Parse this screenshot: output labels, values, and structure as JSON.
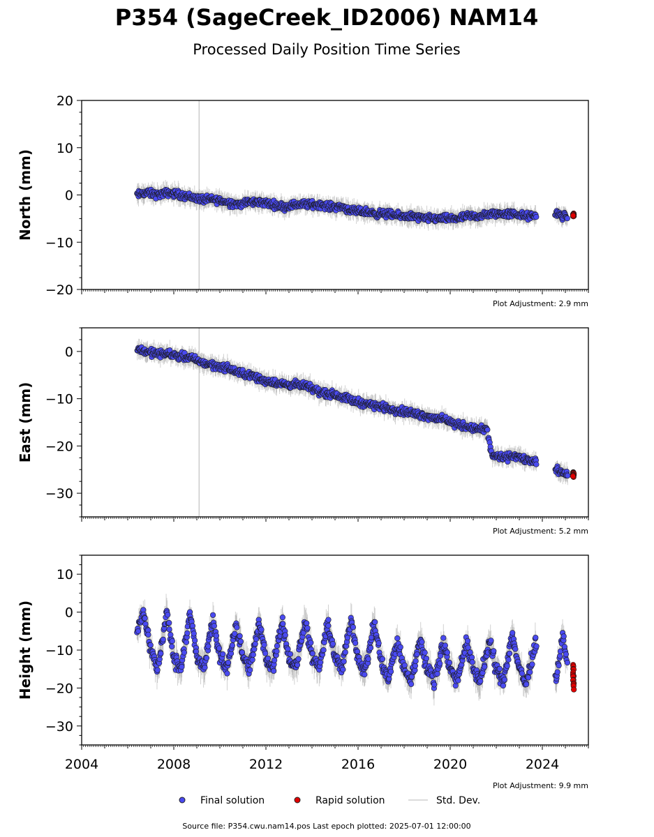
{
  "title": "P354 (SageCreek_ID2006) NAM14",
  "subtitle": "Processed Daily Position Time Series",
  "source_text": "Source file: P354.cwu.nam14.pos  Last epoch plotted: 2025-07-01 12:00:00",
  "legend": {
    "final": "Final solution",
    "rapid": "Rapid solution",
    "std": "Std. Dev."
  },
  "colors": {
    "final": "#4a4af0",
    "rapid": "#e00000",
    "std": "#888888",
    "vline": "#cccccc"
  },
  "chart_data": [
    {
      "type": "scatter",
      "id": "north",
      "ylabel": "North (mm)",
      "ylim": [
        -20,
        20
      ],
      "yticks": [
        -20,
        -10,
        0,
        10,
        20
      ],
      "xlim": [
        2004,
        2026
      ],
      "adjustment": "Plot Adjustment: 2.9 mm",
      "vertical_line_x": 2009.1,
      "series": [
        {
          "name": "Final solution",
          "points": [
            [
              2006.4,
              0
            ],
            [
              2006.8,
              0.5
            ],
            [
              2007.3,
              0
            ],
            [
              2007.8,
              0.5
            ],
            [
              2008.3,
              0
            ],
            [
              2008.8,
              -0.5
            ],
            [
              2009.3,
              -1
            ],
            [
              2009.8,
              -1
            ],
            [
              2010.3,
              -1.5
            ],
            [
              2010.8,
              -2
            ],
            [
              2011.3,
              -1.5
            ],
            [
              2011.8,
              -1.5
            ],
            [
              2012.3,
              -2
            ],
            [
              2012.8,
              -2.5
            ],
            [
              2013.3,
              -2
            ],
            [
              2013.8,
              -2
            ],
            [
              2014.3,
              -2
            ],
            [
              2014.8,
              -2.5
            ],
            [
              2015.3,
              -2.5
            ],
            [
              2015.8,
              -3.5
            ],
            [
              2016.3,
              -3.5
            ],
            [
              2016.8,
              -4
            ],
            [
              2017.3,
              -4
            ],
            [
              2017.8,
              -4.5
            ],
            [
              2018.3,
              -4.5
            ],
            [
              2018.8,
              -5
            ],
            [
              2019.3,
              -5
            ],
            [
              2019.8,
              -5
            ],
            [
              2020.3,
              -5
            ],
            [
              2020.8,
              -4.5
            ],
            [
              2021.3,
              -4.5
            ],
            [
              2021.8,
              -4
            ],
            [
              2022.3,
              -4
            ],
            [
              2022.8,
              -4
            ],
            [
              2023.3,
              -4.5
            ],
            [
              2023.7,
              -4.5
            ],
            [
              2024.6,
              -4
            ],
            [
              2024.9,
              -4.5
            ],
            [
              2025.1,
              -4.5
            ]
          ]
        },
        {
          "name": "Rapid solution",
          "points": [
            [
              2025.3,
              -4
            ],
            [
              2025.4,
              -4.5
            ]
          ]
        }
      ]
    },
    {
      "type": "scatter",
      "id": "east",
      "ylabel": "East (mm)",
      "ylim": [
        -35,
        5
      ],
      "yticks": [
        -30,
        -20,
        -10,
        0
      ],
      "xlim": [
        2004,
        2026
      ],
      "adjustment": "Plot Adjustment: 5.2 mm",
      "vertical_line_x": 2009.1,
      "series": [
        {
          "name": "Final solution",
          "points": [
            [
              2006.4,
              0.5
            ],
            [
              2006.8,
              0
            ],
            [
              2007.3,
              -0.5
            ],
            [
              2007.8,
              -0.5
            ],
            [
              2008.3,
              -1
            ],
            [
              2008.8,
              -1.5
            ],
            [
              2009.3,
              -2.5
            ],
            [
              2009.8,
              -3
            ],
            [
              2010.3,
              -3.5
            ],
            [
              2010.8,
              -4.5
            ],
            [
              2011.3,
              -5
            ],
            [
              2011.8,
              -6
            ],
            [
              2012.3,
              -6.5
            ],
            [
              2012.8,
              -7
            ],
            [
              2013.3,
              -7
            ],
            [
              2013.8,
              -7.5
            ],
            [
              2014.3,
              -8.5
            ],
            [
              2014.8,
              -9
            ],
            [
              2015.3,
              -9.5
            ],
            [
              2015.8,
              -10.5
            ],
            [
              2016.3,
              -11
            ],
            [
              2016.8,
              -11.5
            ],
            [
              2017.3,
              -12
            ],
            [
              2017.8,
              -12.5
            ],
            [
              2018.3,
              -13
            ],
            [
              2018.8,
              -13.5
            ],
            [
              2019.3,
              -14
            ],
            [
              2019.8,
              -14.5
            ],
            [
              2020.3,
              -15.5
            ],
            [
              2020.8,
              -16
            ],
            [
              2021.3,
              -16.5
            ],
            [
              2021.6,
              -16.5
            ],
            [
              2021.8,
              -22
            ],
            [
              2022.3,
              -22.5
            ],
            [
              2022.8,
              -22
            ],
            [
              2023.3,
              -23
            ],
            [
              2023.7,
              -23.5
            ],
            [
              2024.6,
              -25
            ],
            [
              2024.9,
              -25.5
            ],
            [
              2025.1,
              -26
            ]
          ]
        },
        {
          "name": "Rapid solution",
          "points": [
            [
              2025.3,
              -25.5
            ],
            [
              2025.4,
              -26.5
            ]
          ]
        }
      ]
    },
    {
      "type": "scatter",
      "id": "height",
      "ylabel": "Height (mm)",
      "ylim": [
        -35,
        15
      ],
      "yticks": [
        -30,
        -20,
        -10,
        0,
        10
      ],
      "xlim": [
        2004,
        2026
      ],
      "xticks": [
        2004,
        2008,
        2012,
        2016,
        2020,
        2024
      ],
      "adjustment": "Plot Adjustment: 9.9 mm",
      "series": [
        {
          "name": "Final solution",
          "points": [
            [
              2006.4,
              -5
            ],
            [
              2006.7,
              0
            ],
            [
              2007.0,
              -10
            ],
            [
              2007.3,
              -15
            ],
            [
              2007.7,
              0
            ],
            [
              2008.0,
              -12
            ],
            [
              2008.3,
              -15
            ],
            [
              2008.7,
              0
            ],
            [
              2009.0,
              -12
            ],
            [
              2009.3,
              -15
            ],
            [
              2009.7,
              -2
            ],
            [
              2010.0,
              -12
            ],
            [
              2010.3,
              -15
            ],
            [
              2010.7,
              -3
            ],
            [
              2011.0,
              -12
            ],
            [
              2011.3,
              -15
            ],
            [
              2011.7,
              -3
            ],
            [
              2012.0,
              -12
            ],
            [
              2012.3,
              -15
            ],
            [
              2012.7,
              -2
            ],
            [
              2013.0,
              -12
            ],
            [
              2013.3,
              -15
            ],
            [
              2013.7,
              -2
            ],
            [
              2014.0,
              -12
            ],
            [
              2014.3,
              -15
            ],
            [
              2014.7,
              -3
            ],
            [
              2015.0,
              -12
            ],
            [
              2015.3,
              -15
            ],
            [
              2015.7,
              -2
            ],
            [
              2016.0,
              -12
            ],
            [
              2016.3,
              -16
            ],
            [
              2016.7,
              -3
            ],
            [
              2017.0,
              -13
            ],
            [
              2017.3,
              -18
            ],
            [
              2017.7,
              -8
            ],
            [
              2018.0,
              -15
            ],
            [
              2018.3,
              -18
            ],
            [
              2018.7,
              -7
            ],
            [
              2019.0,
              -15
            ],
            [
              2019.3,
              -18
            ],
            [
              2019.7,
              -8
            ],
            [
              2020.0,
              -15
            ],
            [
              2020.3,
              -18
            ],
            [
              2020.7,
              -8
            ],
            [
              2021.0,
              -15
            ],
            [
              2021.3,
              -18
            ],
            [
              2021.7,
              -8
            ],
            [
              2022.0,
              -15
            ],
            [
              2022.3,
              -18
            ],
            [
              2022.7,
              -6
            ],
            [
              2023.0,
              -15
            ],
            [
              2023.3,
              -19
            ],
            [
              2023.7,
              -8
            ],
            [
              2024.6,
              -18
            ],
            [
              2024.9,
              -6
            ],
            [
              2025.1,
              -15
            ]
          ]
        },
        {
          "name": "Rapid solution",
          "points": [
            [
              2025.3,
              -14
            ],
            [
              2025.4,
              -20
            ]
          ]
        }
      ]
    }
  ]
}
